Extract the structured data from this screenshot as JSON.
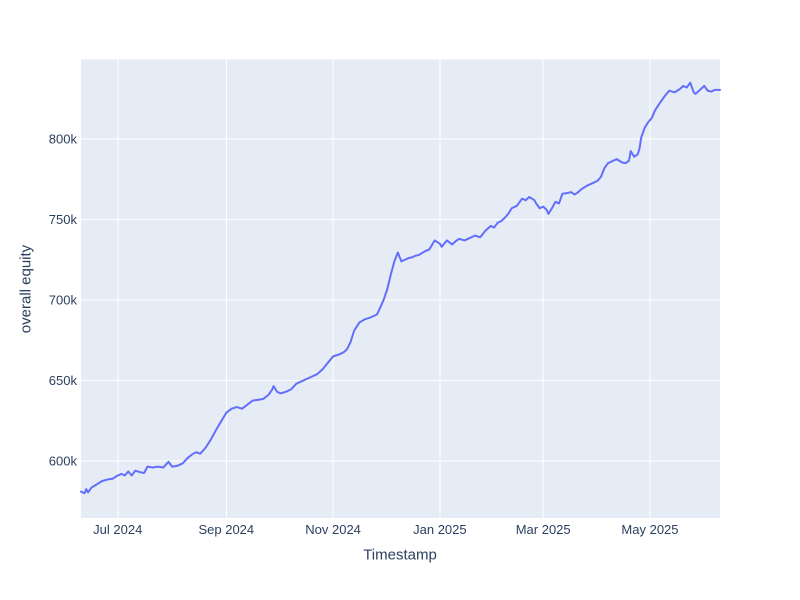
{
  "page": {
    "background_color": "#ffffff"
  },
  "chart_data": {
    "type": "line",
    "title": "",
    "xlabel": "Timestamp",
    "ylabel": "overall equity",
    "legend": "none",
    "grid": true,
    "plot_bgcolor": "#e5ecf6",
    "grid_color": "#ffffff",
    "line_color": "#636efa",
    "line_width": 2,
    "font_color": "#2a3f5f",
    "x_range": [
      "2024-06-10",
      "2025-06-10"
    ],
    "y_range": [
      564600,
      849400
    ],
    "x_ticks": [
      {
        "label": "Jul 2024",
        "date": "2024-07-01"
      },
      {
        "label": "Sep 2024",
        "date": "2024-09-01"
      },
      {
        "label": "Nov 2024",
        "date": "2024-11-01"
      },
      {
        "label": "Jan 2025",
        "date": "2025-01-01"
      },
      {
        "label": "Mar 2025",
        "date": "2025-03-01"
      },
      {
        "label": "May 2025",
        "date": "2025-05-01"
      }
    ],
    "y_ticks": [
      {
        "label": "600k",
        "value": 600000
      },
      {
        "label": "650k",
        "value": 650000
      },
      {
        "label": "700k",
        "value": 700000
      },
      {
        "label": "750k",
        "value": 750000
      },
      {
        "label": "800k",
        "value": 800000
      }
    ],
    "series": [
      {
        "name": "overall equity",
        "points": [
          [
            "2024-06-10",
            581000
          ],
          [
            "2024-06-12",
            580000
          ],
          [
            "2024-06-13",
            582500
          ],
          [
            "2024-06-14",
            580500
          ],
          [
            "2024-06-16",
            583500
          ],
          [
            "2024-06-19",
            585500
          ],
          [
            "2024-06-22",
            587500
          ],
          [
            "2024-06-25",
            588500
          ],
          [
            "2024-06-28",
            589000
          ],
          [
            "2024-07-01",
            591000
          ],
          [
            "2024-07-03",
            592000
          ],
          [
            "2024-07-05",
            591000
          ],
          [
            "2024-07-07",
            593500
          ],
          [
            "2024-07-09",
            591000
          ],
          [
            "2024-07-11",
            594000
          ],
          [
            "2024-07-14",
            593000
          ],
          [
            "2024-07-16",
            592500
          ],
          [
            "2024-07-18",
            596500
          ],
          [
            "2024-07-21",
            596000
          ],
          [
            "2024-07-24",
            596500
          ],
          [
            "2024-07-27",
            596000
          ],
          [
            "2024-07-30",
            599500
          ],
          [
            "2024-08-01",
            596500
          ],
          [
            "2024-08-04",
            597000
          ],
          [
            "2024-08-07",
            598500
          ],
          [
            "2024-08-10",
            602000
          ],
          [
            "2024-08-13",
            604500
          ],
          [
            "2024-08-15",
            605500
          ],
          [
            "2024-08-17",
            604500
          ],
          [
            "2024-08-20",
            608000
          ],
          [
            "2024-08-23",
            613000
          ],
          [
            "2024-08-26",
            619000
          ],
          [
            "2024-08-29",
            624500
          ],
          [
            "2024-09-01",
            630000
          ],
          [
            "2024-09-04",
            632500
          ],
          [
            "2024-09-07",
            633500
          ],
          [
            "2024-09-10",
            632500
          ],
          [
            "2024-09-13",
            635000
          ],
          [
            "2024-09-16",
            637500
          ],
          [
            "2024-09-19",
            638000
          ],
          [
            "2024-09-22",
            638500
          ],
          [
            "2024-09-25",
            641000
          ],
          [
            "2024-09-27",
            644000
          ],
          [
            "2024-09-28",
            646500
          ],
          [
            "2024-09-30",
            643000
          ],
          [
            "2024-10-02",
            642000
          ],
          [
            "2024-10-05",
            643000
          ],
          [
            "2024-10-08",
            644500
          ],
          [
            "2024-10-11",
            648000
          ],
          [
            "2024-10-14",
            649500
          ],
          [
            "2024-10-17",
            651000
          ],
          [
            "2024-10-20",
            652500
          ],
          [
            "2024-10-23",
            654000
          ],
          [
            "2024-10-26",
            657000
          ],
          [
            "2024-10-29",
            661000
          ],
          [
            "2024-11-01",
            665000
          ],
          [
            "2024-11-04",
            666000
          ],
          [
            "2024-11-07",
            667500
          ],
          [
            "2024-11-09",
            669500
          ],
          [
            "2024-11-11",
            674000
          ],
          [
            "2024-11-13",
            681000
          ],
          [
            "2024-11-16",
            686000
          ],
          [
            "2024-11-19",
            688000
          ],
          [
            "2024-11-22",
            689000
          ],
          [
            "2024-11-26",
            691000
          ],
          [
            "2024-11-28",
            695500
          ],
          [
            "2024-11-30",
            700500
          ],
          [
            "2024-12-02",
            707000
          ],
          [
            "2024-12-04",
            716000
          ],
          [
            "2024-12-06",
            724000
          ],
          [
            "2024-12-08",
            729500
          ],
          [
            "2024-12-10",
            724000
          ],
          [
            "2024-12-12",
            725000
          ],
          [
            "2024-12-14",
            726000
          ],
          [
            "2024-12-16",
            726500
          ],
          [
            "2024-12-18",
            727500
          ],
          [
            "2024-12-20",
            728000
          ],
          [
            "2024-12-23",
            730000
          ],
          [
            "2024-12-26",
            731500
          ],
          [
            "2024-12-29",
            737000
          ],
          [
            "2025-01-01",
            735000
          ],
          [
            "2025-01-02",
            733000
          ],
          [
            "2025-01-05",
            737000
          ],
          [
            "2025-01-08",
            734500
          ],
          [
            "2025-01-10",
            736500
          ],
          [
            "2025-01-12",
            738000
          ],
          [
            "2025-01-15",
            737000
          ],
          [
            "2025-01-18",
            738500
          ],
          [
            "2025-01-21",
            740000
          ],
          [
            "2025-01-24",
            739000
          ],
          [
            "2025-01-27",
            743000
          ],
          [
            "2025-01-30",
            746000
          ],
          [
            "2025-02-01",
            745000
          ],
          [
            "2025-02-03",
            748000
          ],
          [
            "2025-02-05",
            749000
          ],
          [
            "2025-02-07",
            751000
          ],
          [
            "2025-02-09",
            753500
          ],
          [
            "2025-02-11",
            757000
          ],
          [
            "2025-02-14",
            758500
          ],
          [
            "2025-02-17",
            763000
          ],
          [
            "2025-02-19",
            762000
          ],
          [
            "2025-02-21",
            764000
          ],
          [
            "2025-02-24",
            762000
          ],
          [
            "2025-02-25",
            760000
          ],
          [
            "2025-02-27",
            757000
          ],
          [
            "2025-03-01",
            758000
          ],
          [
            "2025-03-03",
            756000
          ],
          [
            "2025-03-04",
            753500
          ],
          [
            "2025-03-06",
            757000
          ],
          [
            "2025-03-08",
            761000
          ],
          [
            "2025-03-10",
            760000
          ],
          [
            "2025-03-12",
            766000
          ],
          [
            "2025-03-15",
            766500
          ],
          [
            "2025-03-17",
            767000
          ],
          [
            "2025-03-19",
            765500
          ],
          [
            "2025-03-21",
            767000
          ],
          [
            "2025-03-23",
            769000
          ],
          [
            "2025-03-26",
            771000
          ],
          [
            "2025-03-29",
            772500
          ],
          [
            "2025-04-01",
            774000
          ],
          [
            "2025-04-03",
            776500
          ],
          [
            "2025-04-05",
            782000
          ],
          [
            "2025-04-07",
            785000
          ],
          [
            "2025-04-09",
            786000
          ],
          [
            "2025-04-12",
            787500
          ],
          [
            "2025-04-15",
            785500
          ],
          [
            "2025-04-17",
            785000
          ],
          [
            "2025-04-19",
            786500
          ],
          [
            "2025-04-20",
            792500
          ],
          [
            "2025-04-22",
            789000
          ],
          [
            "2025-04-24",
            790500
          ],
          [
            "2025-04-25",
            794000
          ],
          [
            "2025-04-26",
            801000
          ],
          [
            "2025-04-28",
            807000
          ],
          [
            "2025-04-30",
            810500
          ],
          [
            "2025-05-02",
            813000
          ],
          [
            "2025-05-04",
            818000
          ],
          [
            "2025-05-07",
            823000
          ],
          [
            "2025-05-10",
            827500
          ],
          [
            "2025-05-12",
            830000
          ],
          [
            "2025-05-15",
            829000
          ],
          [
            "2025-05-18",
            831000
          ],
          [
            "2025-05-20",
            833000
          ],
          [
            "2025-05-22",
            832000
          ],
          [
            "2025-05-24",
            835000
          ],
          [
            "2025-05-26",
            829000
          ],
          [
            "2025-05-27",
            828000
          ],
          [
            "2025-05-30",
            831000
          ],
          [
            "2025-06-01",
            833000
          ],
          [
            "2025-06-03",
            830000
          ],
          [
            "2025-06-05",
            829500
          ],
          [
            "2025-06-07",
            830500
          ],
          [
            "2025-06-10",
            830500
          ]
        ]
      }
    ]
  }
}
